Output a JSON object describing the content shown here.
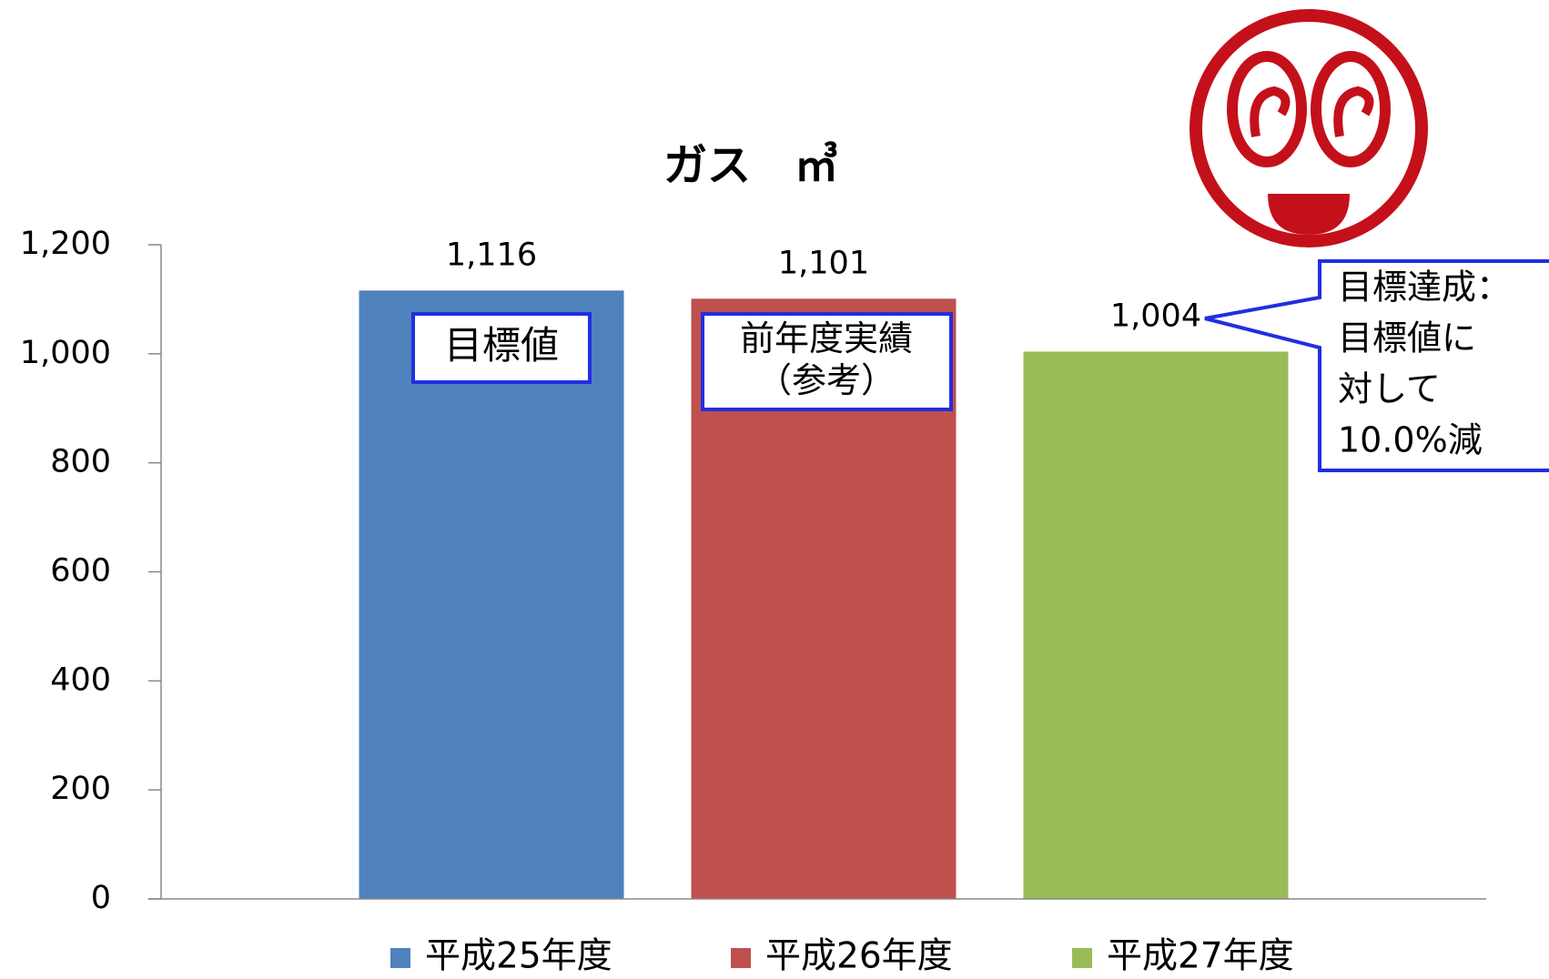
{
  "chart_data": {
    "type": "bar",
    "title": "ガス　㎥",
    "categories": [
      null
    ],
    "series": [
      {
        "name": "平成25年度",
        "color": "#4f81bd",
        "values": [
          1116
        ],
        "value_labels": [
          "1,116"
        ]
      },
      {
        "name": "平成26年度",
        "color": "#c0504d",
        "values": [
          1101
        ],
        "value_labels": [
          "1,101"
        ]
      },
      {
        "name": "平成27年度",
        "color": "#9bbb59",
        "values": [
          1004
        ],
        "value_labels": [
          "1,004"
        ]
      }
    ],
    "ylim": [
      0,
      1200
    ],
    "yticks": [
      0,
      200,
      400,
      600,
      800,
      {
        "value": 1000,
        "label": "1,000"
      },
      {
        "value": 1200,
        "label": "1,200"
      }
    ],
    "grid": false,
    "legend": "bottom",
    "annotations": [
      {
        "lines": [
          "目標値"
        ]
      },
      {
        "lines": [
          "前年度実績",
          "（参考）"
        ]
      },
      {
        "lines": [
          "目標達成：",
          "目標値に",
          "対して",
          "10.0%減"
        ]
      }
    ]
  }
}
